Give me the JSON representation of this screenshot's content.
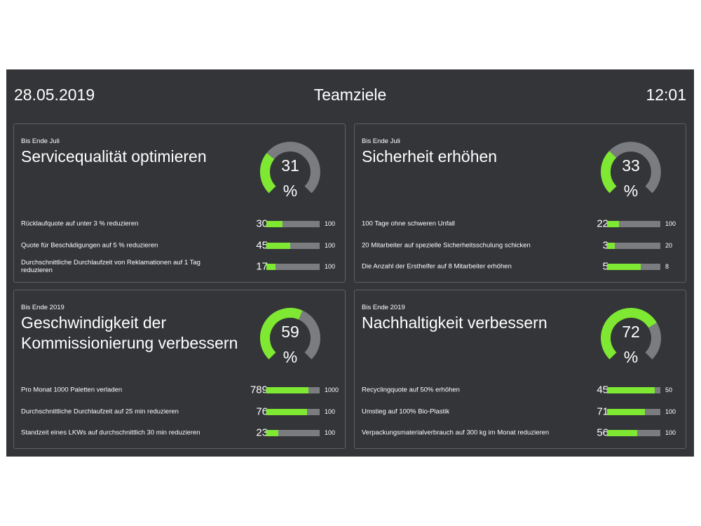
{
  "header": {
    "date": "28.05.2019",
    "title": "Teamziele",
    "time": "12:01"
  },
  "colors": {
    "panel": "#333538",
    "accent": "#7fe833",
    "track": "#7b7c7f",
    "border": "#5e6064"
  },
  "cards": [
    {
      "deadline": "Bis Ende Juli",
      "title": "Servicequalität optimieren",
      "percent": 31,
      "percent_label": "31",
      "percent_sign": "%",
      "goals": [
        {
          "label": "Rücklaufquote auf unter 3 % reduzieren",
          "value": 30,
          "value_label": "30",
          "max": 100,
          "max_label": "100"
        },
        {
          "label": "Quote für Beschädigungen auf 5 % reduzieren",
          "value": 45,
          "value_label": "45",
          "max": 100,
          "max_label": "100"
        },
        {
          "label": "Durchschnittliche Durchlaufzeit von Reklamationen auf 1 Tag reduzieren",
          "value": 17,
          "value_label": "17",
          "max": 100,
          "max_label": "100"
        }
      ]
    },
    {
      "deadline": "Bis Ende Juli",
      "title": "Sicherheit erhöhen",
      "percent": 33,
      "percent_label": "33",
      "percent_sign": "%",
      "goals": [
        {
          "label": "100 Tage ohne schweren Unfall",
          "value": 22,
          "value_label": "22",
          "max": 100,
          "max_label": "100"
        },
        {
          "label": "20 Mitarbeiter auf spezielle Sicherheitsschulung schicken",
          "value": 3,
          "value_label": "3",
          "max": 20,
          "max_label": "20"
        },
        {
          "label": "Die Anzahl der Ersthelfer auf 8 Mitarbeiter erhöhen",
          "value": 5,
          "value_label": "5",
          "max": 8,
          "max_label": "8"
        }
      ]
    },
    {
      "deadline": "Bis Ende 2019",
      "title": "Geschwindigkeit der Kommissionierung verbessern",
      "percent": 59,
      "percent_label": "59",
      "percent_sign": "%",
      "goals": [
        {
          "label": "Pro Monat 1000 Paletten verladen",
          "value": 789,
          "value_label": "789",
          "max": 1000,
          "max_label": "1000"
        },
        {
          "label": "Durchschnittliche Durchlaufzeit auf 25 min reduzieren",
          "value": 76,
          "value_label": "76",
          "max": 100,
          "max_label": "100"
        },
        {
          "label": "Standzeit eines LKWs auf durchschnittlich 30 min reduzieren",
          "value": 23,
          "value_label": "23",
          "max": 100,
          "max_label": "100"
        }
      ]
    },
    {
      "deadline": "Bis Ende 2019",
      "title": "Nachhaltigkeit verbessern",
      "percent": 72,
      "percent_label": "72",
      "percent_sign": "%",
      "goals": [
        {
          "label": "Recyclingquote auf 50% erhöhen",
          "value": 45,
          "value_label": "45",
          "max": 50,
          "max_label": "50"
        },
        {
          "label": "Umstieg auf 100% Bio-Plastik",
          "value": 71,
          "value_label": "71",
          "max": 100,
          "max_label": "100"
        },
        {
          "label": "Verpackungsmaterialverbrauch auf 300 kg im Monat reduzieren",
          "value": 56,
          "value_label": "56",
          "max": 100,
          "max_label": "100"
        }
      ]
    }
  ]
}
